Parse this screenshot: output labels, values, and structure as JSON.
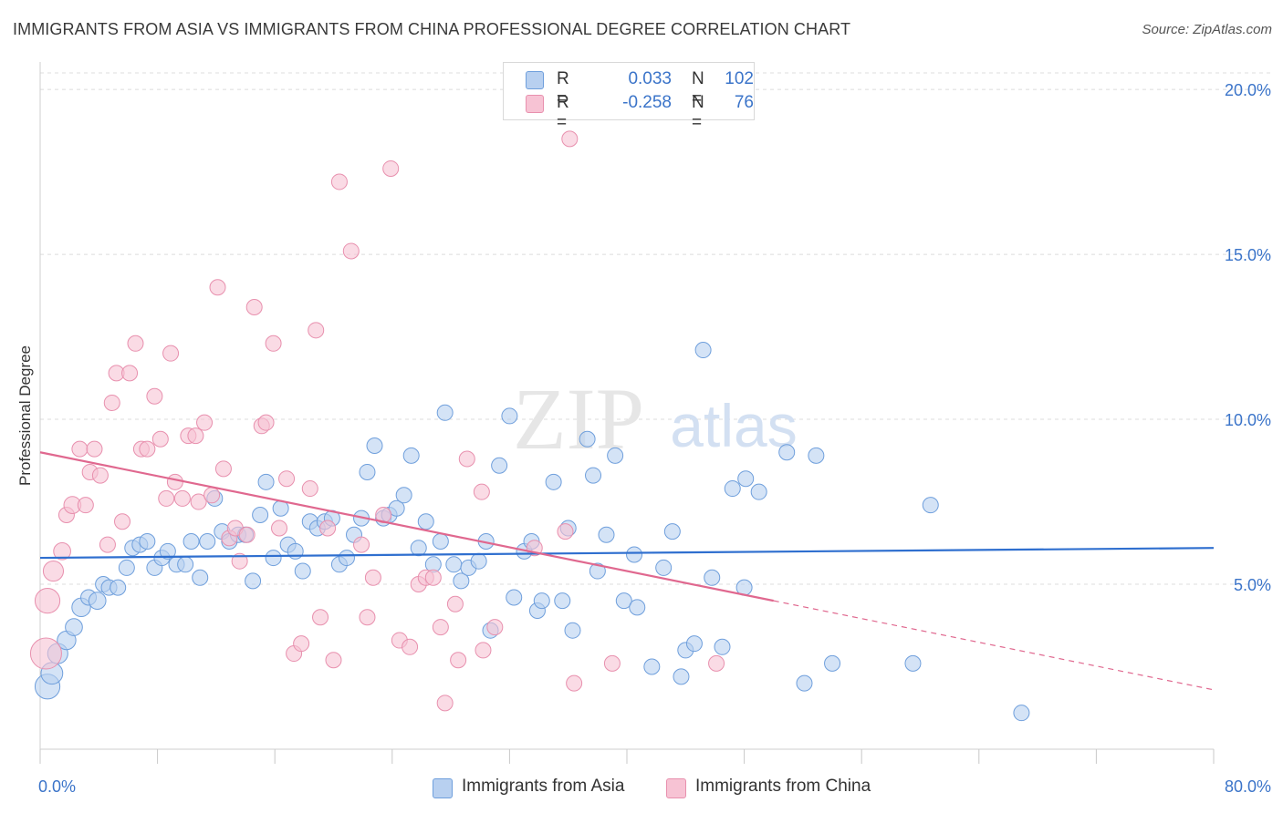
{
  "title": "IMMIGRANTS FROM ASIA VS IMMIGRANTS FROM CHINA PROFESSIONAL DEGREE CORRELATION CHART",
  "source": "Source: ZipAtlas.com",
  "watermark": {
    "zip": "ZIP",
    "atlas": "atlas"
  },
  "legend": {
    "r_label": "R =",
    "n_label": "N =",
    "asia": {
      "r": "0.033",
      "n": "102"
    },
    "china": {
      "r": "-0.258",
      "n": "76"
    }
  },
  "colors": {
    "asia_fill": "#b8d0f0",
    "asia_stroke": "#6f9fdc",
    "asia_line": "#2f6fcf",
    "china_fill": "#f7c3d4",
    "china_stroke": "#e890ae",
    "china_line": "#e0688f",
    "axis_text": "#3b74c9",
    "grid": "#dcdcdc"
  },
  "chart_data": {
    "type": "scatter",
    "title": "IMMIGRANTS FROM ASIA VS IMMIGRANTS FROM CHINA PROFESSIONAL DEGREE CORRELATION CHART",
    "xlabel": "",
    "ylabel": "Professional Degree",
    "xlim": [
      0,
      80
    ],
    "ylim": [
      0,
      20.5
    ],
    "x_tick_labels": [
      "0.0%",
      "80.0%"
    ],
    "y_ticks": [
      5,
      10,
      15,
      20
    ],
    "y_tick_labels": [
      "5.0%",
      "10.0%",
      "15.0%",
      "20.0%"
    ],
    "grid": true,
    "legend_position": "top-center",
    "series": [
      {
        "name": "Immigrants from Asia",
        "trend": {
          "x": [
            0,
            80
          ],
          "y": [
            5.8,
            6.1
          ]
        },
        "points": [
          [
            0.5,
            1.9,
            1.6
          ],
          [
            0.8,
            2.3,
            1.4
          ],
          [
            1.2,
            2.9,
            1.3
          ],
          [
            1.8,
            3.3,
            1.2
          ],
          [
            2.3,
            3.7,
            1.1
          ],
          [
            2.8,
            4.3,
            1.2
          ],
          [
            3.3,
            4.6,
            1.0
          ],
          [
            3.9,
            4.5,
            1.1
          ],
          [
            4.3,
            5.0,
            1.0
          ],
          [
            4.7,
            4.9,
            1.0
          ],
          [
            5.3,
            4.9,
            1.0
          ],
          [
            5.9,
            5.5,
            1.0
          ],
          [
            6.3,
            6.1,
            1.0
          ],
          [
            6.8,
            6.2,
            1.0
          ],
          [
            7.3,
            6.3,
            1.0
          ],
          [
            7.8,
            5.5,
            1.0
          ],
          [
            8.3,
            5.8,
            1.0
          ],
          [
            8.7,
            6.0,
            1.0
          ],
          [
            9.3,
            5.6,
            1.0
          ],
          [
            9.9,
            5.6,
            1.0
          ],
          [
            10.3,
            6.3,
            1.0
          ],
          [
            10.9,
            5.2,
            1.0
          ],
          [
            11.4,
            6.3,
            1.0
          ],
          [
            11.9,
            7.6,
            1.0
          ],
          [
            12.4,
            6.6,
            1.0
          ],
          [
            12.9,
            6.3,
            1.0
          ],
          [
            13.5,
            6.5,
            1.0
          ],
          [
            14.0,
            6.5,
            1.0
          ],
          [
            14.5,
            5.1,
            1.0
          ],
          [
            15.0,
            7.1,
            1.0
          ],
          [
            15.4,
            8.1,
            1.0
          ],
          [
            15.9,
            5.8,
            1.0
          ],
          [
            16.4,
            7.3,
            1.0
          ],
          [
            16.9,
            6.2,
            1.0
          ],
          [
            17.4,
            6.0,
            1.0
          ],
          [
            17.9,
            5.4,
            1.0
          ],
          [
            18.4,
            6.9,
            1.0
          ],
          [
            18.9,
            6.7,
            1.0
          ],
          [
            19.4,
            6.9,
            1.0
          ],
          [
            19.9,
            7.0,
            1.0
          ],
          [
            20.4,
            5.6,
            1.0
          ],
          [
            20.9,
            5.8,
            1.0
          ],
          [
            21.4,
            6.5,
            1.0
          ],
          [
            21.9,
            7.0,
            1.0
          ],
          [
            22.3,
            8.4,
            1.0
          ],
          [
            22.8,
            9.2,
            1.0
          ],
          [
            23.4,
            7.0,
            1.0
          ],
          [
            23.8,
            7.1,
            1.0
          ],
          [
            24.3,
            7.3,
            1.0
          ],
          [
            24.8,
            7.7,
            1.0
          ],
          [
            25.3,
            8.9,
            1.0
          ],
          [
            25.8,
            6.1,
            1.0
          ],
          [
            26.3,
            6.9,
            1.0
          ],
          [
            26.8,
            5.6,
            1.0
          ],
          [
            27.3,
            6.3,
            1.0
          ],
          [
            27.6,
            10.2,
            1.0
          ],
          [
            28.2,
            5.6,
            1.0
          ],
          [
            28.7,
            5.1,
            1.0
          ],
          [
            29.2,
            5.5,
            1.0
          ],
          [
            29.9,
            5.7,
            1.0
          ],
          [
            30.4,
            6.3,
            1.0
          ],
          [
            30.7,
            3.6,
            1.0
          ],
          [
            31.3,
            8.6,
            1.0
          ],
          [
            32.0,
            10.1,
            1.0
          ],
          [
            32.3,
            4.6,
            1.0
          ],
          [
            33.0,
            6.0,
            1.0
          ],
          [
            33.5,
            6.3,
            1.0
          ],
          [
            33.9,
            4.2,
            1.0
          ],
          [
            34.2,
            4.5,
            1.0
          ],
          [
            35.0,
            8.1,
            1.0
          ],
          [
            35.6,
            4.5,
            1.0
          ],
          [
            36.0,
            6.7,
            1.0
          ],
          [
            36.3,
            3.6,
            1.0
          ],
          [
            37.3,
            9.4,
            1.0
          ],
          [
            37.7,
            8.3,
            1.0
          ],
          [
            38.0,
            5.4,
            1.0
          ],
          [
            38.6,
            6.5,
            1.0
          ],
          [
            39.2,
            8.9,
            1.0
          ],
          [
            39.8,
            4.5,
            1.0
          ],
          [
            40.5,
            5.9,
            1.0
          ],
          [
            40.7,
            4.3,
            1.0
          ],
          [
            41.7,
            2.5,
            1.0
          ],
          [
            42.5,
            5.5,
            1.0
          ],
          [
            43.1,
            6.6,
            1.0
          ],
          [
            43.7,
            2.2,
            1.0
          ],
          [
            44.0,
            3.0,
            1.0
          ],
          [
            44.6,
            3.2,
            1.0
          ],
          [
            45.2,
            12.1,
            1.0
          ],
          [
            45.8,
            5.2,
            1.0
          ],
          [
            46.5,
            3.1,
            1.0
          ],
          [
            47.2,
            7.9,
            1.0
          ],
          [
            48.0,
            4.9,
            1.0
          ],
          [
            48.1,
            8.2,
            1.0
          ],
          [
            49.0,
            7.8,
            1.0
          ],
          [
            50.9,
            9.0,
            1.0
          ],
          [
            52.1,
            2.0,
            1.0
          ],
          [
            52.9,
            8.9,
            1.0
          ],
          [
            54.0,
            2.6,
            1.0
          ],
          [
            59.5,
            2.6,
            1.0
          ],
          [
            60.7,
            7.4,
            1.0
          ],
          [
            66.9,
            1.1,
            1.0
          ]
        ]
      },
      {
        "name": "Immigrants from China",
        "trend": {
          "x": [
            0,
            50
          ],
          "y": [
            9.0,
            4.5
          ]
        },
        "trend_extension": {
          "x": [
            50,
            80
          ],
          "y": [
            4.5,
            1.8
          ]
        },
        "points": [
          [
            0.4,
            2.9,
            2.0
          ],
          [
            0.5,
            4.5,
            1.6
          ],
          [
            0.9,
            5.4,
            1.3
          ],
          [
            1.5,
            6.0,
            1.1
          ],
          [
            1.8,
            7.1,
            1.0
          ],
          [
            2.2,
            7.4,
            1.1
          ],
          [
            2.7,
            9.1,
            1.0
          ],
          [
            3.1,
            7.4,
            1.0
          ],
          [
            3.4,
            8.4,
            1.0
          ],
          [
            3.7,
            9.1,
            1.0
          ],
          [
            4.1,
            8.3,
            1.0
          ],
          [
            4.6,
            6.2,
            1.0
          ],
          [
            4.9,
            10.5,
            1.0
          ],
          [
            5.2,
            11.4,
            1.0
          ],
          [
            5.6,
            6.9,
            1.0
          ],
          [
            6.1,
            11.4,
            1.0
          ],
          [
            6.5,
            12.3,
            1.0
          ],
          [
            6.9,
            9.1,
            1.0
          ],
          [
            7.3,
            9.1,
            1.0
          ],
          [
            7.8,
            10.7,
            1.0
          ],
          [
            8.2,
            9.4,
            1.0
          ],
          [
            8.6,
            7.6,
            1.0
          ],
          [
            8.9,
            12.0,
            1.0
          ],
          [
            9.2,
            8.1,
            1.0
          ],
          [
            9.7,
            7.6,
            1.0
          ],
          [
            10.1,
            9.5,
            1.0
          ],
          [
            10.6,
            9.5,
            1.0
          ],
          [
            10.8,
            7.5,
            1.0
          ],
          [
            11.2,
            9.9,
            1.0
          ],
          [
            11.7,
            7.7,
            1.0
          ],
          [
            12.1,
            14.0,
            1.0
          ],
          [
            12.5,
            8.5,
            1.0
          ],
          [
            12.9,
            6.4,
            1.0
          ],
          [
            13.3,
            6.7,
            1.0
          ],
          [
            13.6,
            5.7,
            1.0
          ],
          [
            14.1,
            6.5,
            1.0
          ],
          [
            14.6,
            13.4,
            1.0
          ],
          [
            15.1,
            9.8,
            1.0
          ],
          [
            15.4,
            9.9,
            1.0
          ],
          [
            15.9,
            12.3,
            1.0
          ],
          [
            16.3,
            6.7,
            1.0
          ],
          [
            16.8,
            8.2,
            1.0
          ],
          [
            17.3,
            2.9,
            1.0
          ],
          [
            17.8,
            3.2,
            1.0
          ],
          [
            18.4,
            7.9,
            1.0
          ],
          [
            18.8,
            12.7,
            1.0
          ],
          [
            19.1,
            4.0,
            1.0
          ],
          [
            19.6,
            6.7,
            1.0
          ],
          [
            20.0,
            2.7,
            1.0
          ],
          [
            20.4,
            17.2,
            1.0
          ],
          [
            21.2,
            15.1,
            1.0
          ],
          [
            21.9,
            6.2,
            1.0
          ],
          [
            22.3,
            4.0,
            1.0
          ],
          [
            22.7,
            5.2,
            1.0
          ],
          [
            23.4,
            7.1,
            1.0
          ],
          [
            23.9,
            17.6,
            1.0
          ],
          [
            24.5,
            3.3,
            1.0
          ],
          [
            25.2,
            3.1,
            1.0
          ],
          [
            25.8,
            5.0,
            1.0
          ],
          [
            26.3,
            5.2,
            1.0
          ],
          [
            26.8,
            5.2,
            1.0
          ],
          [
            27.3,
            3.7,
            1.0
          ],
          [
            27.6,
            1.4,
            1.0
          ],
          [
            28.3,
            4.4,
            1.0
          ],
          [
            28.5,
            2.7,
            1.0
          ],
          [
            29.1,
            8.8,
            1.0
          ],
          [
            30.1,
            7.8,
            1.0
          ],
          [
            30.2,
            3.0,
            1.0
          ],
          [
            31.0,
            3.7,
            1.0
          ],
          [
            33.7,
            6.1,
            1.0
          ],
          [
            35.8,
            6.6,
            1.0
          ],
          [
            36.1,
            18.5,
            1.0
          ],
          [
            36.4,
            2.0,
            1.0
          ],
          [
            39.0,
            2.6,
            1.0
          ],
          [
            46.1,
            2.6,
            1.0
          ]
        ]
      }
    ]
  }
}
